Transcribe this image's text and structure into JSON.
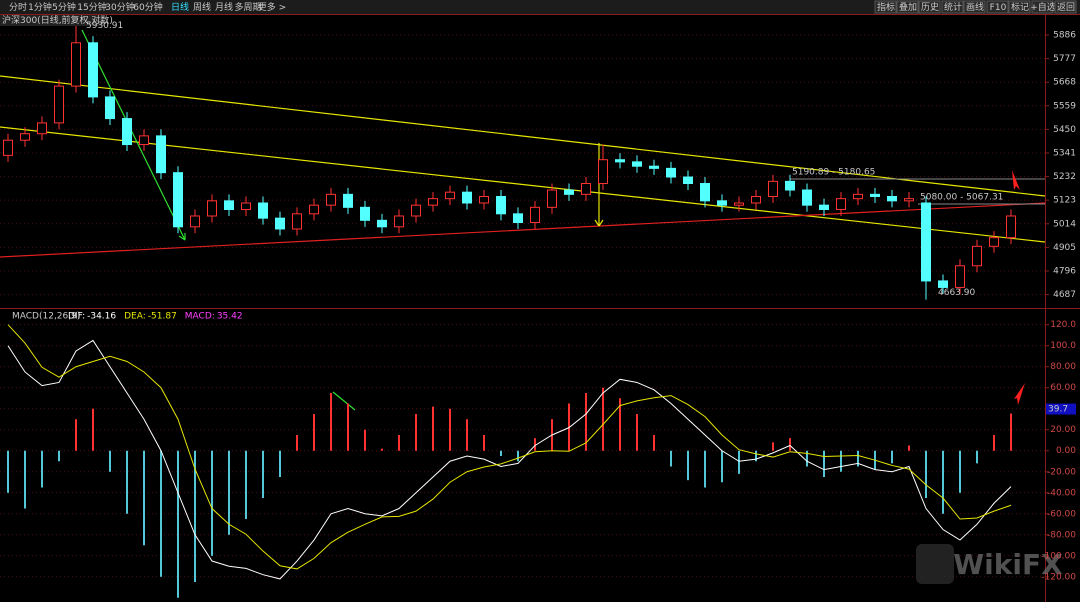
{
  "toolbar": {
    "left": [
      "分时",
      "1分钟",
      "5分钟",
      "15分钟",
      "30分钟",
      "60分钟",
      "日线",
      "周线",
      "月线",
      "多周期",
      "更多 >"
    ],
    "active": 6,
    "right": [
      "指标",
      "叠加",
      "历史",
      "统计",
      "画线",
      "F10",
      "标记",
      "+自选",
      "返回"
    ]
  },
  "watermark": "WikiFX",
  "chart_data": [
    {
      "type": "candlestick",
      "title": "沪深300(日线,前复权,对数)",
      "series": [
        {
          "color_up": "#ff3232",
          "color_down": "#54ffff",
          "open": [
            5330,
            5400,
            5430,
            5480,
            5650,
            5850,
            5600,
            5500,
            5380,
            5420,
            5250,
            5000,
            5050,
            5120,
            5080,
            5110,
            5040,
            4990,
            5060,
            5100,
            5150,
            5090,
            5030,
            5000,
            5050,
            5100,
            5130,
            5160,
            5110,
            5140,
            5060,
            5020,
            5090,
            5170,
            5150,
            5200,
            5310,
            5300,
            5280,
            5270,
            5230,
            5200,
            5120,
            5100,
            5110,
            5140,
            5210,
            5170,
            5100,
            5080,
            5130,
            5150,
            5140,
            5120,
            5110,
            4750,
            4720,
            4820,
            4910,
            4950
          ],
          "high": [
            5430,
            5460,
            5510,
            5680,
            5930.91,
            5880,
            5630,
            5530,
            5450,
            5450,
            5280,
            5080,
            5150,
            5150,
            5140,
            5140,
            5070,
            5090,
            5130,
            5180,
            5180,
            5120,
            5060,
            5080,
            5130,
            5160,
            5190,
            5190,
            5170,
            5170,
            5090,
            5120,
            5200,
            5200,
            5230,
            5380,
            5340,
            5330,
            5310,
            5300,
            5260,
            5230,
            5150,
            5140,
            5170,
            5240,
            5240,
            5200,
            5130,
            5160,
            5180,
            5180,
            5170,
            5160,
            5140,
            4780,
            4850,
            4940,
            4980,
            5080
          ],
          "low": [
            5300,
            5370,
            5400,
            5450,
            5620,
            5570,
            5470,
            5350,
            5350,
            5220,
            4970,
            4970,
            5020,
            5050,
            5050,
            5010,
            4960,
            4960,
            5030,
            5070,
            5060,
            5000,
            4970,
            4970,
            5020,
            5070,
            5100,
            5080,
            5080,
            5030,
            4990,
            4990,
            5060,
            5120,
            5120,
            5170,
            5270,
            5250,
            5240,
            5200,
            5170,
            5090,
            5070,
            5070,
            5080,
            5110,
            5140,
            5070,
            5050,
            5050,
            5100,
            5110,
            5090,
            5090,
            4663.9,
            4690,
            4690,
            4790,
            4880,
            4920
          ],
          "close": [
            5400,
            5430,
            5480,
            5650,
            5850,
            5600,
            5500,
            5380,
            5420,
            5250,
            5000,
            5050,
            5120,
            5080,
            5110,
            5040,
            4990,
            5060,
            5100,
            5150,
            5090,
            5030,
            5000,
            5050,
            5100,
            5130,
            5160,
            5110,
            5140,
            5060,
            5020,
            5090,
            5170,
            5150,
            5200,
            5310,
            5300,
            5280,
            5270,
            5230,
            5200,
            5120,
            5100,
            5110,
            5140,
            5210,
            5170,
            5100,
            5080,
            5130,
            5150,
            5140,
            5120,
            5130,
            4750,
            4720,
            4820,
            4910,
            4950,
            5050
          ]
        }
      ],
      "annotations": [
        "5930.91",
        "4663.90",
        "5190.89 - 5180.65",
        "5080.00 - 5067.31"
      ],
      "ylim": [
        4625,
        5983
      ],
      "yticks": [
        5886,
        5777,
        5668,
        5559,
        5450,
        5341,
        5232,
        5123,
        5014,
        4905,
        4796,
        4687
      ],
      "grid": true
    },
    {
      "type": "macd",
      "title": "MACD(12,26,9)",
      "series": [
        {
          "name": "DIF:",
          "color": "#ffffff",
          "last": -34.16,
          "values": [
            100,
            75,
            62,
            65,
            95,
            105,
            80,
            55,
            30,
            0,
            -40,
            -80,
            -105,
            -110,
            -112,
            -118,
            -122,
            -105,
            -85,
            -60,
            -55,
            -60,
            -62,
            -55,
            -40,
            -25,
            -10,
            -5,
            -8,
            -15,
            -12,
            5,
            15,
            22,
            35,
            55,
            68,
            65,
            58,
            45,
            30,
            15,
            0,
            -10,
            -8,
            -2,
            5,
            -10,
            -18,
            -15,
            -12,
            -18,
            -20,
            -15,
            -55,
            -75,
            -85,
            -70,
            -50,
            -34.16
          ]
        },
        {
          "name": "DEA:",
          "color": "#e6e600",
          "last": -51.87,
          "values": [
            120,
            102.5,
            79.5,
            70,
            80,
            85,
            90,
            85,
            75,
            60,
            30,
            -17.5,
            -55,
            -70,
            -79.5,
            -95.5,
            -109.5,
            -112.5,
            -102.5,
            -87.5,
            -77.5,
            -70,
            -63,
            -62.5,
            -57.5,
            -46,
            -30,
            -20,
            -15.5,
            -12.5,
            -7,
            -1,
            0,
            -0.5,
            7.5,
            25,
            43,
            47.5,
            50.5,
            52.5,
            44,
            32.5,
            15,
            1,
            -3,
            -6,
            -1,
            -2.5,
            -5.5,
            -5,
            -4.5,
            -9,
            -14,
            -17.5,
            -32.5,
            -45,
            -65,
            -64,
            -57.5,
            -51.87
          ]
        },
        {
          "name": "MACD:",
          "color": "#ff40ff",
          "last": 35.42,
          "color_up": "#ff3232",
          "color_down": "#54c7d8",
          "values": [
            -40,
            -55,
            -35,
            -10,
            30,
            40,
            -20,
            -60,
            -90,
            -120,
            -140,
            -125,
            -100,
            -80,
            -65,
            -45,
            -25,
            15,
            35,
            55,
            45,
            20,
            2,
            15,
            35,
            42,
            40,
            30,
            15,
            -5,
            -10,
            12,
            30,
            45,
            55,
            60,
            50,
            35,
            15,
            -15,
            -28,
            -35,
            -30,
            -22,
            -10,
            8,
            12,
            -15,
            -25,
            -20,
            -15,
            -18,
            -12,
            5,
            -45,
            -60,
            -40,
            -12,
            15,
            35.42
          ]
        }
      ],
      "current": 39.7,
      "ylim": [
        -144,
        134
      ],
      "yticks": [
        {
          "value": 120,
          "label": "120.0"
        },
        {
          "value": 100,
          "label": "100.0"
        },
        {
          "value": 80,
          "label": "80.00"
        },
        {
          "value": 60,
          "label": "60.00"
        },
        {
          "value": 40,
          "label": "40.00"
        },
        {
          "value": 20,
          "label": "20.00"
        },
        {
          "value": 0,
          "label": "0.00"
        },
        {
          "value": -20,
          "label": "-20.00"
        },
        {
          "value": -40,
          "label": "-40.00"
        },
        {
          "value": -60,
          "label": "-60.00"
        },
        {
          "value": -80,
          "label": "-80.00"
        },
        {
          "value": -100,
          "label": "-100.00"
        },
        {
          "value": -120,
          "label": "-120.00"
        }
      ],
      "grid": true
    }
  ]
}
